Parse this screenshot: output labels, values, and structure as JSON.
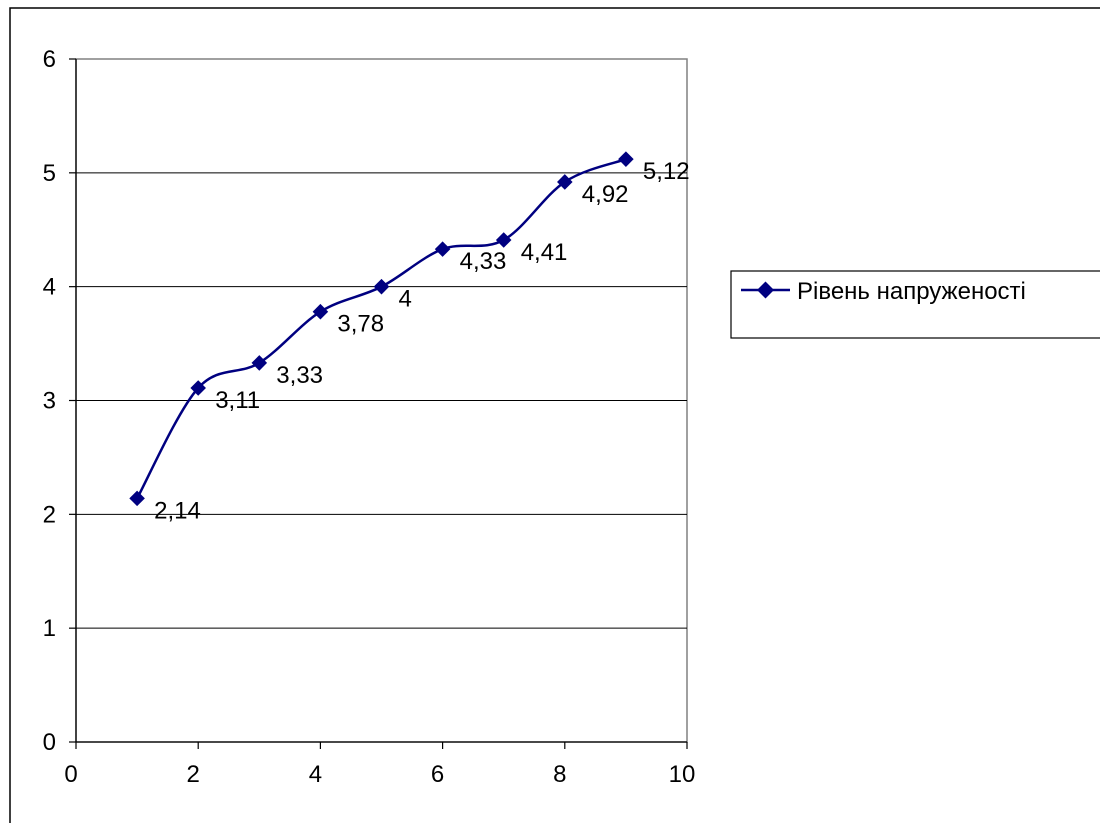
{
  "chart_data": {
    "type": "line",
    "title": "",
    "xlabel": "",
    "ylabel": "",
    "xlim": [
      0,
      10
    ],
    "ylim": [
      0,
      6
    ],
    "x_ticks": [
      "0",
      "2",
      "4",
      "6",
      "8",
      "10"
    ],
    "y_ticks": [
      "0",
      "1",
      "2",
      "3",
      "4",
      "5",
      "6"
    ],
    "grid": "horizontal",
    "smoothed": true,
    "legend_position": "right",
    "series": [
      {
        "name": "Рівень напруженості",
        "color": "#000080",
        "marker": "diamond",
        "x": [
          1,
          2,
          3,
          4,
          5,
          6,
          7,
          8,
          9
        ],
        "y": [
          2.14,
          3.11,
          3.33,
          3.78,
          4,
          4.33,
          4.41,
          4.92,
          5.12
        ],
        "data_labels": [
          "2,14",
          "3,11",
          "3,33",
          "3,78",
          "4",
          "4,33",
          "4,41",
          "4,92",
          "5,12"
        ]
      }
    ]
  }
}
